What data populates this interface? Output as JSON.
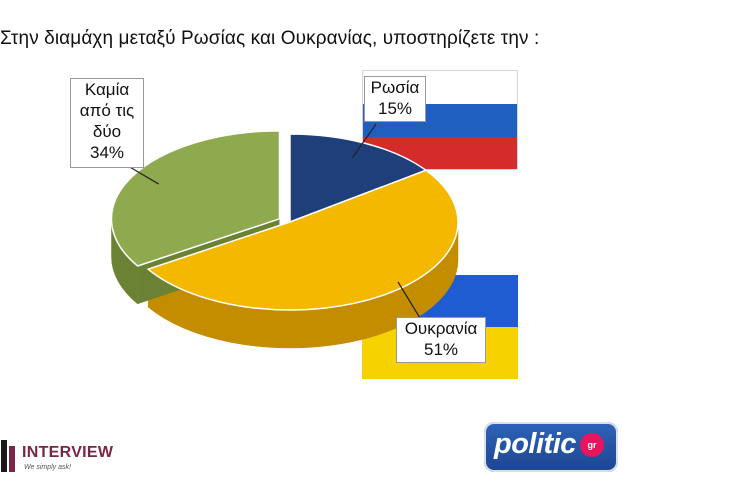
{
  "header": {
    "title": "Στην διαμάχη μεταξύ Ρωσίας και Ουκρανίας, υποστηρίζετε την :"
  },
  "chart_data": {
    "type": "pie",
    "title": "Στην διαμάχη μεταξύ Ρωσίας και Ουκρανίας, υποστηρίζετε την :",
    "categories": [
      "Ρωσία",
      "Ουκρανία",
      "Καμία από τις δύο"
    ],
    "values": [
      15,
      51,
      34
    ],
    "unit": "%",
    "colors": [
      "#1f3f7a",
      "#f5b800",
      "#8faa4e"
    ],
    "side_colors": [
      "#152b56",
      "#c48d00",
      "#6b8235"
    ],
    "exploded": "Καμία από τις δύο",
    "style": "3d",
    "legend": "none"
  },
  "callouts": {
    "russia": {
      "line1": "Ρωσία",
      "line2": "15%"
    },
    "neither": {
      "line1": "Καμία",
      "line2": "από τις",
      "line3": "δύο",
      "line4": "34%"
    },
    "ukraine": {
      "line1": "Ουκρανία",
      "line2": "51%"
    }
  },
  "flags": {
    "russia": {
      "icon": "russia-flag-icon",
      "colors": [
        "#ffffff",
        "#1e5fbf",
        "#d52b2b"
      ]
    },
    "ukraine": {
      "icon": "ukraine-flag-icon",
      "colors": [
        "#1f5bd1",
        "#f6d300"
      ]
    }
  },
  "logos": {
    "interview": {
      "name": "INTERVIEW",
      "tagline": "We simply ask!",
      "icon": "interview-logo-icon"
    },
    "politic": {
      "word": "politic",
      "badge": "gr",
      "icon": "politic-logo-icon"
    }
  }
}
